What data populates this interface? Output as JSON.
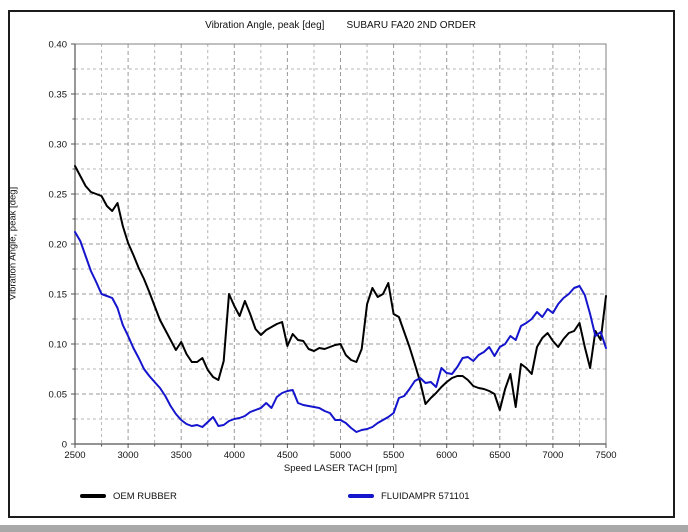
{
  "header": {
    "title_left": "Vibration Angle, peak [deg]",
    "title_right": "SUBARU FA20 2ND ORDER"
  },
  "chart_data": {
    "type": "line",
    "title": "Vibration Angle, peak [deg]   SUBARU FA20 2ND ORDER",
    "xlabel": "Speed LASER TACH [rpm]",
    "ylabel": "Vibration Angle, peak [deg]",
    "xlim": [
      2500,
      7500
    ],
    "ylim": [
      0,
      0.4
    ],
    "x_major_step": 500,
    "x_minor_step": 250,
    "y_major_step": 0.05,
    "y_minor_step": 0.025,
    "x_tick_labels": [
      "2500",
      "3000",
      "3500",
      "4000",
      "4500",
      "5000",
      "5500",
      "6000",
      "6500",
      "7000",
      "7500"
    ],
    "y_tick_labels": [
      "0",
      "0.05",
      "0.10",
      "0.15",
      "0.20",
      "0.25",
      "0.30",
      "0.35",
      "0.40"
    ],
    "grid": "dashed",
    "legend_position": "bottom",
    "colors": {
      "grid_minor": "#b7b7b7",
      "grid_major": "#9a9a9a",
      "axis": "#555555",
      "border": "#808080"
    },
    "x": [
      2500,
      2550,
      2600,
      2650,
      2700,
      2750,
      2800,
      2850,
      2900,
      2950,
      3000,
      3050,
      3100,
      3150,
      3200,
      3250,
      3300,
      3350,
      3400,
      3450,
      3500,
      3550,
      3600,
      3650,
      3700,
      3750,
      3800,
      3850,
      3900,
      3950,
      4000,
      4050,
      4100,
      4150,
      4200,
      4250,
      4300,
      4350,
      4400,
      4450,
      4500,
      4550,
      4600,
      4650,
      4700,
      4750,
      4800,
      4850,
      4900,
      4950,
      5000,
      5050,
      5100,
      5150,
      5200,
      5250,
      5300,
      5350,
      5400,
      5450,
      5500,
      5550,
      5600,
      5650,
      5700,
      5750,
      5800,
      5850,
      5900,
      5950,
      6000,
      6050,
      6100,
      6150,
      6200,
      6250,
      6300,
      6350,
      6400,
      6450,
      6500,
      6550,
      6600,
      6650,
      6700,
      6750,
      6800,
      6850,
      6900,
      6950,
      7000,
      7050,
      7100,
      7150,
      7200,
      7250,
      7300,
      7350,
      7400,
      7450,
      7500
    ],
    "series": [
      {
        "name": "OEM RUBBER",
        "color": "#000000",
        "values": [
          0.278,
          0.268,
          0.258,
          0.252,
          0.25,
          0.248,
          0.238,
          0.233,
          0.241,
          0.218,
          0.201,
          0.189,
          0.176,
          0.165,
          0.152,
          0.138,
          0.124,
          0.114,
          0.104,
          0.094,
          0.102,
          0.09,
          0.082,
          0.082,
          0.086,
          0.074,
          0.067,
          0.064,
          0.083,
          0.15,
          0.138,
          0.128,
          0.143,
          0.13,
          0.115,
          0.109,
          0.114,
          0.117,
          0.12,
          0.122,
          0.098,
          0.11,
          0.104,
          0.103,
          0.095,
          0.093,
          0.096,
          0.095,
          0.097,
          0.099,
          0.1,
          0.089,
          0.084,
          0.082,
          0.095,
          0.14,
          0.156,
          0.147,
          0.15,
          0.161,
          0.13,
          0.127,
          0.112,
          0.097,
          0.08,
          0.062,
          0.04,
          0.046,
          0.051,
          0.057,
          0.062,
          0.066,
          0.068,
          0.068,
          0.064,
          0.058,
          0.056,
          0.055,
          0.053,
          0.05,
          0.034,
          0.055,
          0.07,
          0.037,
          0.08,
          0.076,
          0.07,
          0.097,
          0.106,
          0.111,
          0.103,
          0.097,
          0.105,
          0.111,
          0.113,
          0.121,
          0.097,
          0.076,
          0.113,
          0.104,
          0.148
        ]
      },
      {
        "name": "FLUIDAMPR 571101",
        "color": "#1515cd",
        "values": [
          0.212,
          0.203,
          0.188,
          0.173,
          0.162,
          0.15,
          0.148,
          0.146,
          0.136,
          0.119,
          0.108,
          0.096,
          0.086,
          0.075,
          0.068,
          0.062,
          0.056,
          0.048,
          0.038,
          0.03,
          0.024,
          0.02,
          0.018,
          0.019,
          0.017,
          0.022,
          0.027,
          0.018,
          0.019,
          0.023,
          0.025,
          0.026,
          0.028,
          0.032,
          0.034,
          0.036,
          0.041,
          0.036,
          0.047,
          0.051,
          0.053,
          0.054,
          0.041,
          0.039,
          0.038,
          0.037,
          0.036,
          0.033,
          0.031,
          0.024,
          0.024,
          0.021,
          0.016,
          0.012,
          0.014,
          0.015,
          0.017,
          0.021,
          0.024,
          0.027,
          0.031,
          0.046,
          0.048,
          0.055,
          0.063,
          0.066,
          0.061,
          0.062,
          0.057,
          0.076,
          0.071,
          0.07,
          0.077,
          0.086,
          0.087,
          0.083,
          0.089,
          0.092,
          0.097,
          0.088,
          0.097,
          0.1,
          0.108,
          0.104,
          0.118,
          0.121,
          0.125,
          0.132,
          0.127,
          0.135,
          0.131,
          0.14,
          0.146,
          0.15,
          0.156,
          0.158,
          0.149,
          0.13,
          0.108,
          0.112,
          0.096
        ]
      }
    ]
  }
}
